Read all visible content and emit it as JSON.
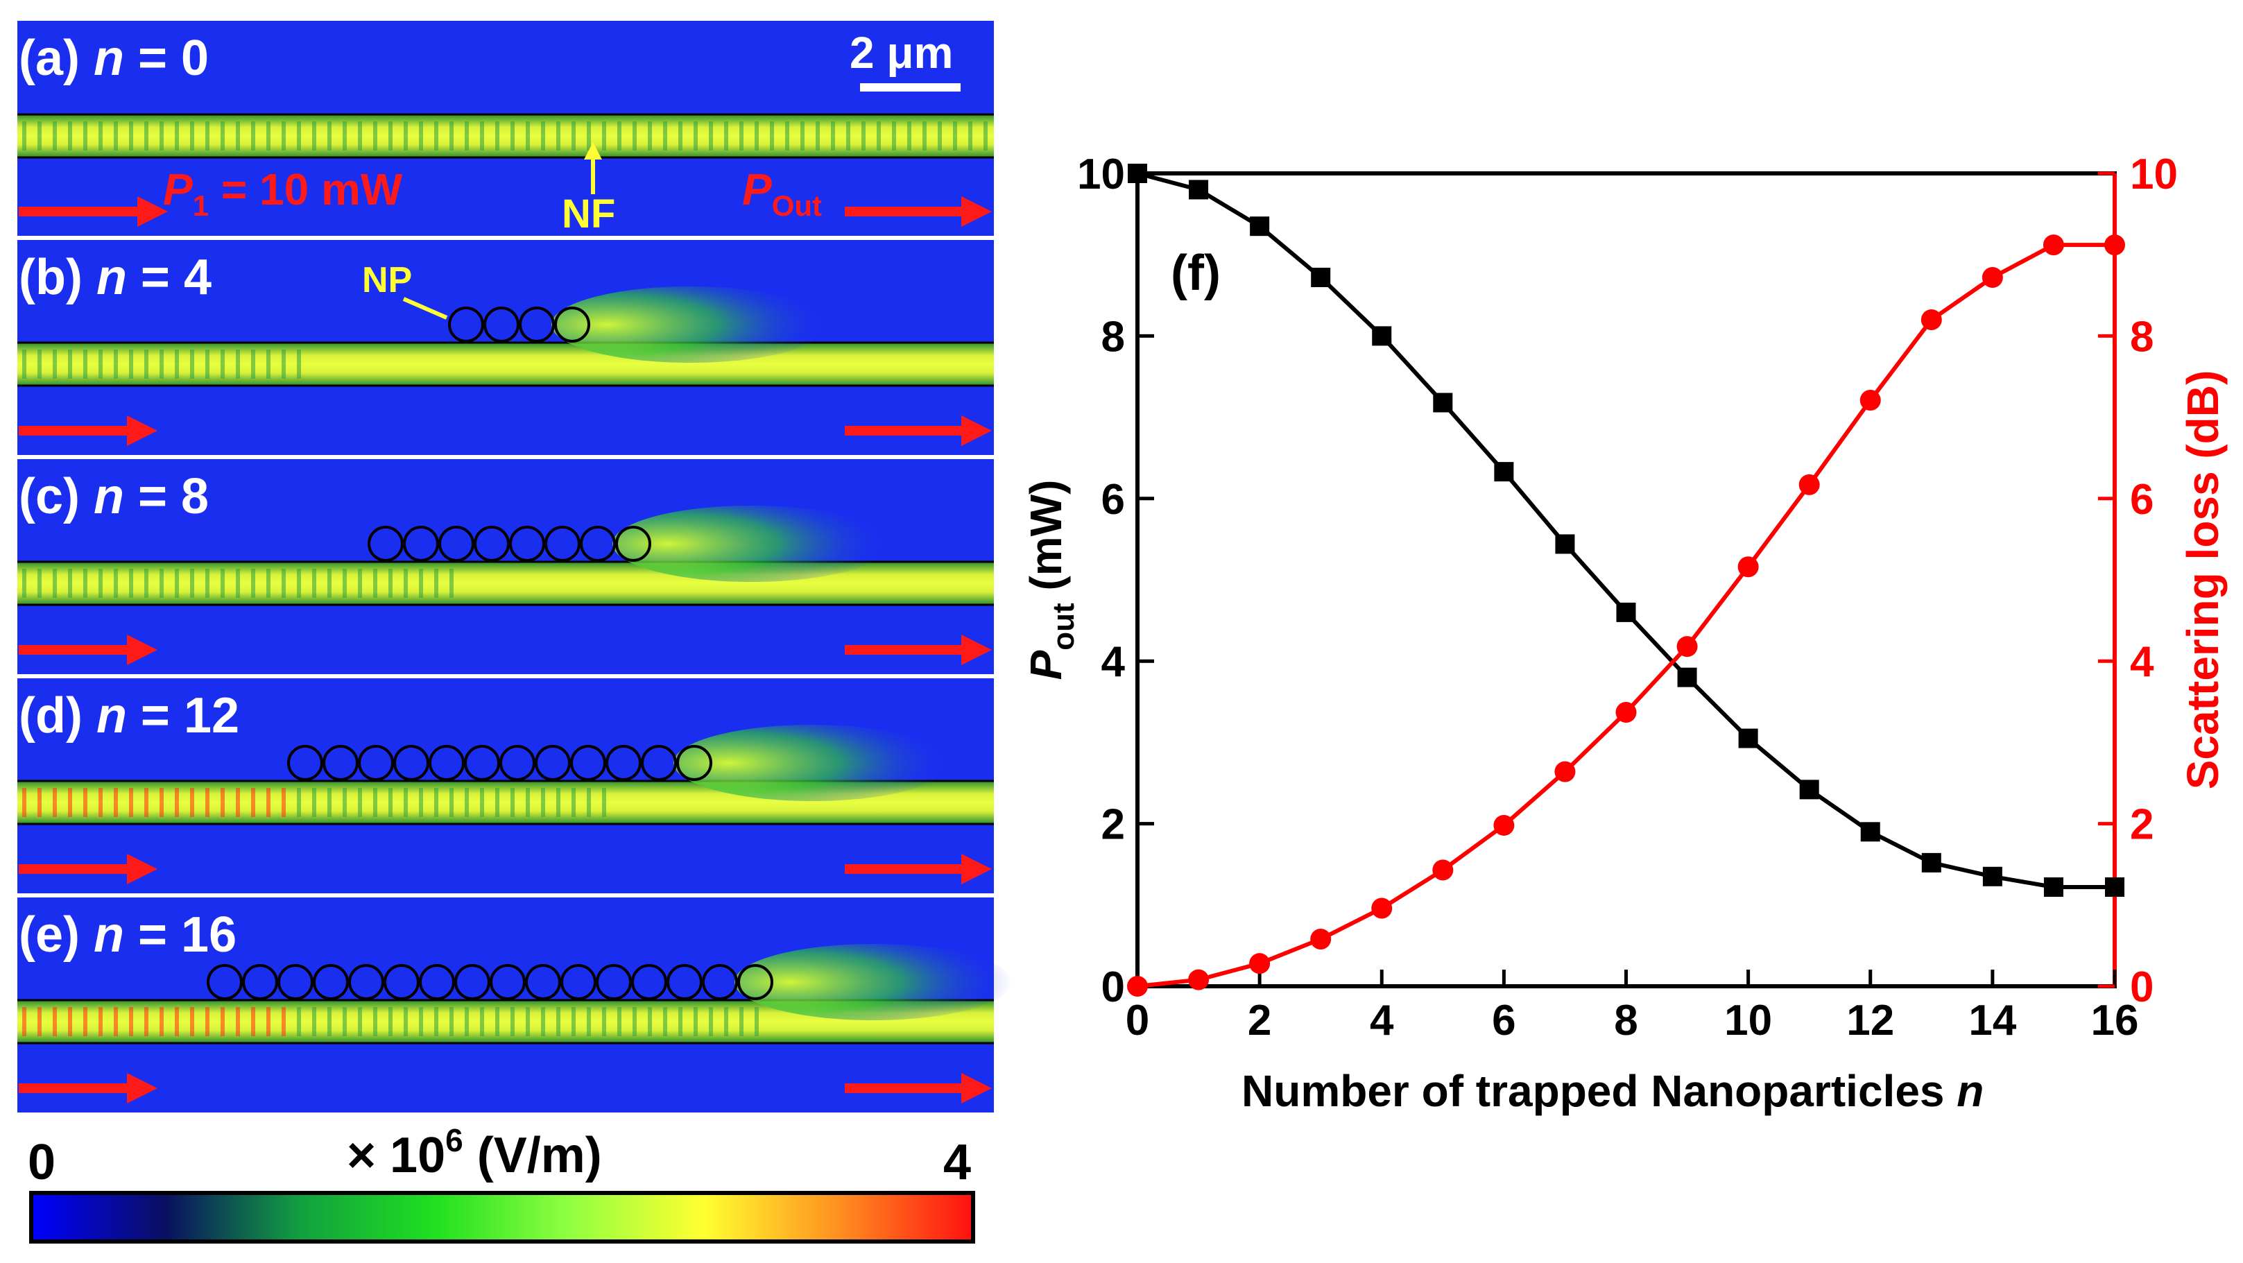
{
  "panels": [
    {
      "label": "(a)",
      "n_var": "n",
      "eq": " = 0",
      "n": 0
    },
    {
      "label": "(b)",
      "n_var": "n",
      "eq": " = 4",
      "n": 4
    },
    {
      "label": "(c)",
      "n_var": "n",
      "eq": " = 8",
      "n": 8
    },
    {
      "label": "(d)",
      "n_var": "n",
      "eq": " = 12",
      "n": 12
    },
    {
      "label": "(e)",
      "n_var": "n",
      "eq": " = 16",
      "n": 16
    }
  ],
  "annotations": {
    "scalebar": "2 μm",
    "p1_sym": "P",
    "p1_sub": "1",
    "p1_val": " = 10 mW",
    "pout_sym": "P",
    "pout_sub": "Out",
    "nf": "NF",
    "np": "NP"
  },
  "colorbar": {
    "min": "0",
    "max": "4",
    "unit_prefix": "× 10",
    "unit_exp": "6",
    "unit_suffix": " (V/m)",
    "stops": [
      "#0000ff",
      "#0a1060",
      "#12a040",
      "#20e020",
      "#90ff40",
      "#ffff30",
      "#ff9020",
      "#ff1010"
    ]
  },
  "colors": {
    "field_bg": "#1a2ef0",
    "waveguide": "#c8f020",
    "arrow": "#ff1a1a",
    "annotation": "#ffff33",
    "black_series": "#000000",
    "red_series": "#ff0000"
  },
  "chart_data": {
    "type": "line",
    "panel_label": "(f)",
    "xlabel_text": "Number of trapped Nanoparticles ",
    "xlabel_var": "n",
    "ylabel_sym": "P",
    "ylabel_sub": "out",
    "ylabel_unit": " (mW)",
    "y2label": "Scattering loss (dB)",
    "xlim": [
      0,
      16
    ],
    "ylim": [
      0,
      10
    ],
    "y2lim": [
      0,
      10
    ],
    "xticks": [
      0,
      2,
      4,
      6,
      8,
      10,
      12,
      14,
      16
    ],
    "yticks": [
      0,
      2,
      4,
      6,
      8,
      10
    ],
    "y2ticks": [
      0,
      2,
      4,
      6,
      8,
      10
    ],
    "x": [
      0,
      1,
      2,
      3,
      4,
      5,
      6,
      7,
      8,
      9,
      10,
      11,
      12,
      13,
      14,
      15,
      16
    ],
    "series": [
      {
        "name": "P_out (mW)",
        "axis": "left",
        "marker": "square",
        "color": "#000000",
        "values": [
          10.0,
          9.8,
          9.35,
          8.72,
          8.0,
          7.18,
          6.33,
          5.44,
          4.6,
          3.8,
          3.05,
          2.42,
          1.9,
          1.52,
          1.35,
          1.22,
          1.22
        ]
      },
      {
        "name": "Scattering loss (dB)",
        "axis": "right",
        "marker": "circle",
        "color": "#ff0000",
        "values": [
          0.0,
          0.08,
          0.28,
          0.58,
          0.96,
          1.43,
          1.98,
          2.64,
          3.37,
          4.18,
          5.16,
          6.17,
          7.21,
          8.2,
          8.72,
          9.12,
          9.12
        ]
      }
    ]
  }
}
